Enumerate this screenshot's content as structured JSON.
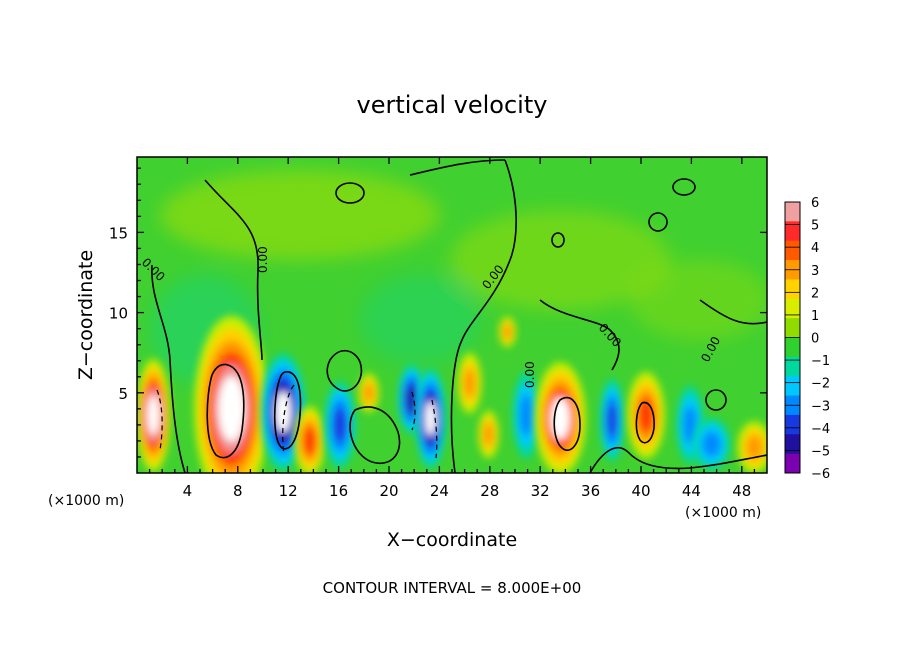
{
  "chart_data": {
    "type": "heatmap",
    "title": "vertical velocity",
    "xlabel": "X−coordinate",
    "ylabel": "Z−coordinate",
    "x_unit_left": "(×1000 m)",
    "x_unit_right": "(×1000 m)",
    "footer": "CONTOUR INTERVAL = 8.000E+00",
    "xlim": [
      0,
      50
    ],
    "ylim": [
      0,
      19.7
    ],
    "x_ticks": [
      4,
      8,
      12,
      16,
      20,
      24,
      28,
      32,
      36,
      40,
      44,
      48
    ],
    "x_tick_labels": [
      "4",
      "8",
      "12",
      "16",
      "20",
      "24",
      "28",
      "32",
      "36",
      "40",
      "44",
      "48"
    ],
    "y_ticks": [
      5,
      10,
      15
    ],
    "y_tick_labels": [
      "5",
      "10",
      "15"
    ],
    "contour_label": "0.00",
    "colorbar": {
      "ticks": [
        6,
        5,
        4,
        3,
        2,
        1,
        0,
        -1,
        -2,
        -3,
        -4,
        -5,
        -6
      ],
      "tick_labels": [
        "6",
        "5",
        "4",
        "3",
        "2",
        "1",
        "0",
        "−1",
        "−2",
        "−3",
        "−4",
        "−5",
        "−6"
      ],
      "colors": [
        "#f0a0a0",
        "#ff2a2a",
        "#ff5a00",
        "#ff9a00",
        "#ffd200",
        "#d8ee00",
        "#90dc00",
        "#30d030",
        "#00d8a0",
        "#00c8ff",
        "#0088ff",
        "#1838e0",
        "#2010a0",
        "#7a00b0"
      ]
    },
    "cells": [
      {
        "x": 1.3,
        "z": 3.6,
        "rx": 1.0,
        "rz": 2.6,
        "w": 12
      },
      {
        "x": 7.5,
        "z": 4.0,
        "rx": 2.2,
        "rz": 4.3,
        "w": 13
      },
      {
        "x": 11.6,
        "z": 3.8,
        "rx": 1.3,
        "rz": 2.7,
        "w": -12
      },
      {
        "x": 13.7,
        "z": 2.0,
        "rx": 0.9,
        "rz": 1.6,
        "w": 7
      },
      {
        "x": 16.1,
        "z": 3.0,
        "rx": 0.9,
        "rz": 2.0,
        "w": -7
      },
      {
        "x": 18.4,
        "z": 5.0,
        "rx": 0.6,
        "rz": 0.9,
        "w": 4
      },
      {
        "x": 21.8,
        "z": 4.6,
        "rx": 0.8,
        "rz": 1.6,
        "w": -9
      },
      {
        "x": 23.3,
        "z": 3.4,
        "rx": 0.9,
        "rz": 2.3,
        "w": -11
      },
      {
        "x": 26.4,
        "z": 5.6,
        "rx": 0.7,
        "rz": 1.4,
        "w": 6
      },
      {
        "x": 27.9,
        "z": 2.4,
        "rx": 0.6,
        "rz": 1.1,
        "w": 5
      },
      {
        "x": 29.4,
        "z": 8.8,
        "rx": 0.5,
        "rz": 0.7,
        "w": 3
      },
      {
        "x": 30.9,
        "z": 3.6,
        "rx": 0.8,
        "rz": 2.0,
        "w": -6
      },
      {
        "x": 33.6,
        "z": 3.4,
        "rx": 1.5,
        "rz": 2.6,
        "w": 10
      },
      {
        "x": 37.7,
        "z": 3.3,
        "rx": 0.7,
        "rz": 1.9,
        "w": -7
      },
      {
        "x": 40.4,
        "z": 3.6,
        "rx": 1.1,
        "rz": 2.0,
        "w": 8
      },
      {
        "x": 43.9,
        "z": 3.0,
        "rx": 0.8,
        "rz": 1.8,
        "w": -6
      },
      {
        "x": 45.6,
        "z": 1.8,
        "rx": 1.1,
        "rz": 1.2,
        "w": -5
      },
      {
        "x": 49.0,
        "z": 1.6,
        "rx": 1.0,
        "rz": 1.2,
        "w": 5
      }
    ]
  }
}
